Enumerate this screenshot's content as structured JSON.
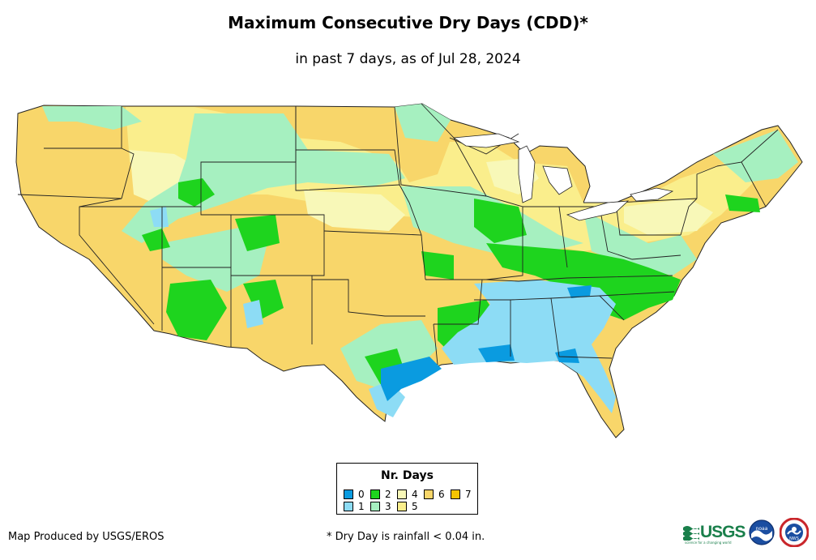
{
  "title": "Maximum Consecutive Dry Days (CDD)*",
  "subtitle": "in past 7 days, as of Jul 28, 2024",
  "legend": {
    "title": "Nr. Days",
    "items": [
      {
        "label": "0",
        "color": "#0a9be0"
      },
      {
        "label": "1",
        "color": "#8ddcf5"
      },
      {
        "label": "2",
        "color": "#1ed41e"
      },
      {
        "label": "3",
        "color": "#a6f0c0"
      },
      {
        "label": "4",
        "color": "#f8f8b8"
      },
      {
        "label": "5",
        "color": "#faee8c"
      },
      {
        "label": "6",
        "color": "#f8d66a"
      },
      {
        "label": "7",
        "color": "#f5c400"
      }
    ]
  },
  "footer": {
    "credit": "Map Produced by USGS/EROS",
    "note": "* Dry Day is rainfall < 0.04 in."
  },
  "logos": {
    "usgs": "USGS",
    "usgs_tagline": "science for a changing world",
    "noaa": "noaa",
    "nws": "NWS"
  }
}
